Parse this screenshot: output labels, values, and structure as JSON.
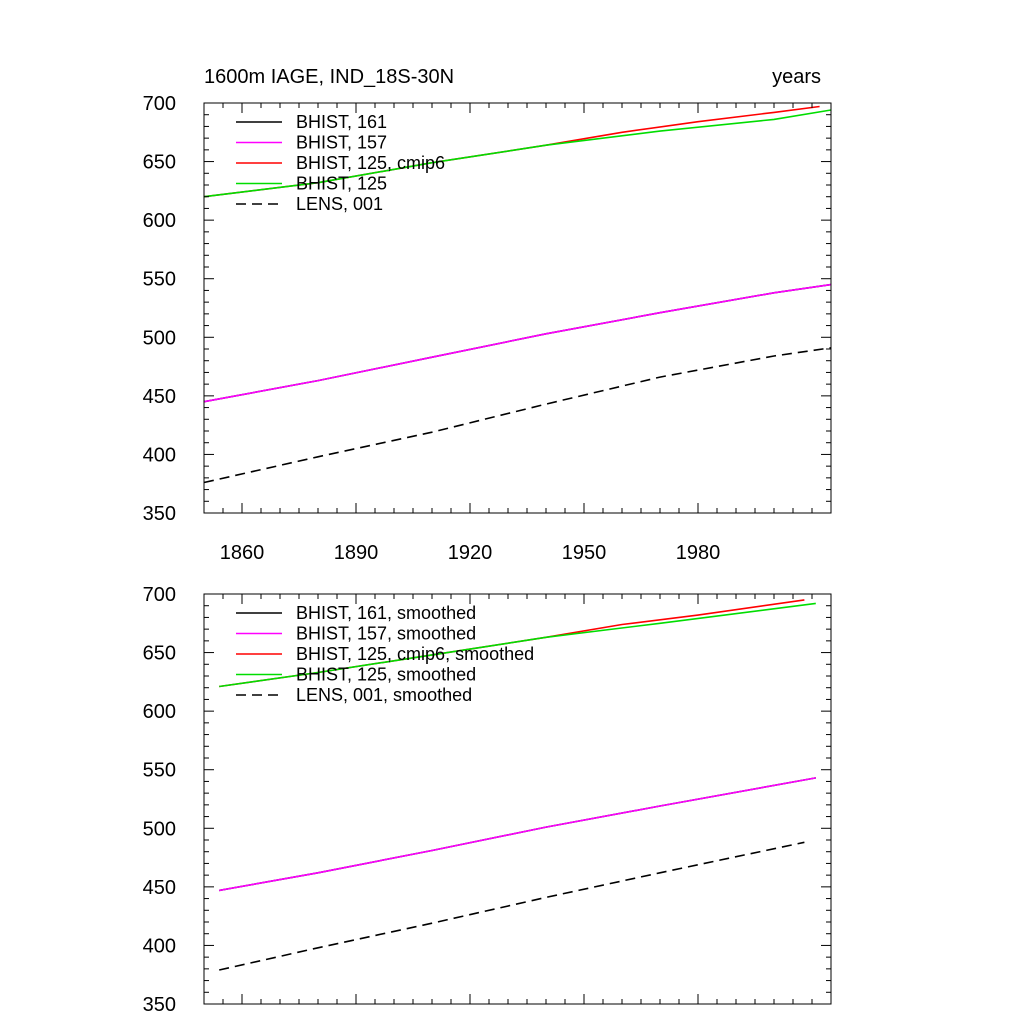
{
  "chart_data": [
    {
      "type": "line",
      "title_left": "1600m IAGE, IND_18S-30N",
      "title_right": "years",
      "xlim": [
        1850,
        2015
      ],
      "ylim": [
        350,
        700
      ],
      "xticks": [
        1860,
        1890,
        1920,
        1950,
        1980
      ],
      "yticks": [
        350,
        400,
        450,
        500,
        550,
        600,
        650,
        700
      ],
      "show_xtick_labels": true,
      "series": [
        {
          "name": "BHIST, 161",
          "color": "#000000",
          "dash": "",
          "x": [
            1850,
            1880,
            1910,
            1940,
            1970,
            2000,
            2015
          ],
          "y": [
            445,
            463,
            483,
            503,
            521,
            538,
            545
          ]
        },
        {
          "name": "BHIST, 157",
          "color": "#ff00ff",
          "dash": "",
          "x": [
            1850,
            1880,
            1910,
            1940,
            1970,
            2000,
            2015
          ],
          "y": [
            445,
            463,
            483,
            503,
            521,
            538,
            545
          ]
        },
        {
          "name": "BHIST, 125, cmip6",
          "color": "#ff0000",
          "dash": "",
          "x": [
            1850,
            1880,
            1910,
            1940,
            1960,
            1980,
            2000,
            2012
          ],
          "y": [
            620,
            632,
            649,
            664,
            675,
            684,
            692,
            697
          ]
        },
        {
          "name": "BHIST, 125",
          "color": "#00dd00",
          "dash": "",
          "x": [
            1850,
            1880,
            1910,
            1940,
            1970,
            2000,
            2015
          ],
          "y": [
            620,
            632,
            649,
            664,
            676,
            686,
            694
          ]
        },
        {
          "name": "LENS, 001",
          "color": "#000000",
          "dash": "10,6",
          "x": [
            1850,
            1880,
            1910,
            1940,
            1970,
            2000,
            2015
          ],
          "y": [
            376,
            398,
            419,
            443,
            466,
            484,
            491
          ]
        }
      ]
    },
    {
      "type": "line",
      "xlim": [
        1850,
        2015
      ],
      "ylim": [
        350,
        700
      ],
      "xticks": [
        1860,
        1890,
        1920,
        1950,
        1980
      ],
      "yticks": [
        350,
        400,
        450,
        500,
        550,
        600,
        650,
        700
      ],
      "show_xtick_labels": false,
      "series": [
        {
          "name": "BHIST, 161, smoothed",
          "color": "#000000",
          "dash": "",
          "x": [
            1854,
            1880,
            1910,
            1940,
            1970,
            2011
          ],
          "y": [
            447,
            462,
            481,
            501,
            519,
            543
          ]
        },
        {
          "name": "BHIST, 157, smoothed",
          "color": "#ff00ff",
          "dash": "",
          "x": [
            1854,
            1880,
            1910,
            1940,
            1970,
            2011
          ],
          "y": [
            447,
            462,
            481,
            501,
            519,
            543
          ]
        },
        {
          "name": "BHIST, 125, cmip6, smoothed",
          "color": "#ff0000",
          "dash": "",
          "x": [
            1854,
            1880,
            1910,
            1940,
            1960,
            1980,
            2008
          ],
          "y": [
            621,
            633,
            648,
            663,
            674,
            682,
            695
          ]
        },
        {
          "name": "BHIST, 125, smoothed",
          "color": "#00dd00",
          "dash": "",
          "x": [
            1854,
            1880,
            1910,
            1940,
            1970,
            2011
          ],
          "y": [
            621,
            633,
            648,
            663,
            675,
            692
          ]
        },
        {
          "name": "LENS, 001, smoothed",
          "color": "#000000",
          "dash": "10,6",
          "x": [
            1854,
            1880,
            1910,
            1940,
            1970,
            2008
          ],
          "y": [
            379,
            398,
            419,
            441,
            462,
            488
          ]
        }
      ]
    }
  ]
}
